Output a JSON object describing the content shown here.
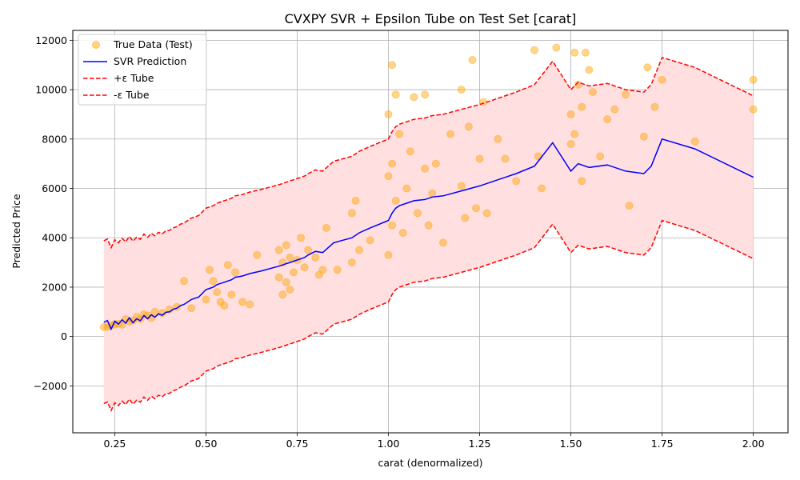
{
  "chart_data": {
    "type": "scatter",
    "title": "CVXPY SVR + Epsilon Tube on Test Set [carat]",
    "xlabel": "carat (denormalized)",
    "ylabel": "Predicted Price",
    "xlim": [
      0.135,
      2.095
    ],
    "ylim": [
      -3900,
      12400
    ],
    "xticks": [
      0.25,
      0.5,
      0.75,
      1.0,
      1.25,
      1.5,
      1.75,
      2.0
    ],
    "xtick_labels": [
      "0.25",
      "0.50",
      "0.75",
      "1.00",
      "1.25",
      "1.50",
      "1.75",
      "2.00"
    ],
    "yticks": [
      -2000,
      0,
      2000,
      4000,
      6000,
      8000,
      10000,
      12000
    ],
    "ytick_labels": [
      "−2000",
      "0",
      "2000",
      "4000",
      "6000",
      "8000",
      "10000",
      "12000"
    ],
    "grid": true,
    "legend_position": "top-left",
    "epsilon": 3300,
    "colors": {
      "scatter": "#ffa500",
      "prediction": "#0000ff",
      "tube": "#ff0000",
      "fill": "#ffdfe0"
    },
    "legend": [
      {
        "label": "True Data (Test)",
        "kind": "marker"
      },
      {
        "label": "SVR Prediction",
        "kind": "solid"
      },
      {
        "label": "+ε Tube",
        "kind": "dashed"
      },
      {
        "label": "-ε Tube",
        "kind": "dashed"
      }
    ],
    "series": [
      {
        "name": "SVR Prediction",
        "x": [
          0.22,
          0.23,
          0.24,
          0.25,
          0.26,
          0.27,
          0.28,
          0.29,
          0.3,
          0.31,
          0.32,
          0.33,
          0.34,
          0.35,
          0.36,
          0.37,
          0.38,
          0.39,
          0.4,
          0.41,
          0.42,
          0.43,
          0.44,
          0.45,
          0.46,
          0.47,
          0.48,
          0.5,
          0.51,
          0.52,
          0.53,
          0.54,
          0.55,
          0.56,
          0.57,
          0.58,
          0.6,
          0.62,
          0.65,
          0.7,
          0.71,
          0.72,
          0.73,
          0.74,
          0.75,
          0.76,
          0.77,
          0.78,
          0.8,
          0.82,
          0.85,
          0.9,
          0.92,
          0.95,
          1.0,
          1.01,
          1.02,
          1.03,
          1.05,
          1.07,
          1.1,
          1.12,
          1.15,
          1.2,
          1.25,
          1.3,
          1.35,
          1.4,
          1.45,
          1.5,
          1.52,
          1.55,
          1.6,
          1.65,
          1.7,
          1.72,
          1.75,
          1.84,
          2.0
        ],
        "y": [
          580,
          650,
          300,
          620,
          500,
          680,
          540,
          760,
          560,
          720,
          640,
          850,
          720,
          880,
          780,
          920,
          860,
          980,
          1000,
          1100,
          1150,
          1250,
          1300,
          1400,
          1500,
          1550,
          1600,
          1900,
          1950,
          2000,
          2100,
          2150,
          2200,
          2250,
          2300,
          2400,
          2450,
          2550,
          2650,
          2850,
          2900,
          2950,
          3000,
          3050,
          3100,
          3150,
          3200,
          3300,
          3450,
          3400,
          3800,
          4000,
          4200,
          4400,
          4700,
          5000,
          5200,
          5300,
          5400,
          5500,
          5550,
          5650,
          5700,
          5900,
          6100,
          6350,
          6600,
          6900,
          7850,
          6700,
          7000,
          6850,
          6950,
          6700,
          6600,
          6900,
          8000,
          7600,
          6450
        ]
      },
      {
        "name": "True Data (Test)",
        "x": [
          0.22,
          0.23,
          0.24,
          0.25,
          0.26,
          0.27,
          0.28,
          0.29,
          0.3,
          0.31,
          0.32,
          0.33,
          0.34,
          0.35,
          0.36,
          0.38,
          0.4,
          0.42,
          0.44,
          0.46,
          0.5,
          0.51,
          0.52,
          0.53,
          0.54,
          0.55,
          0.56,
          0.57,
          0.58,
          0.6,
          0.62,
          0.64,
          0.7,
          0.7,
          0.71,
          0.71,
          0.72,
          0.72,
          0.73,
          0.73,
          0.74,
          0.75,
          0.76,
          0.77,
          0.78,
          0.8,
          0.81,
          0.82,
          0.83,
          0.86,
          0.9,
          0.9,
          0.91,
          0.92,
          0.95,
          1.0,
          1.0,
          1.0,
          1.01,
          1.01,
          1.01,
          1.02,
          1.02,
          1.03,
          1.04,
          1.05,
          1.06,
          1.07,
          1.08,
          1.1,
          1.1,
          1.11,
          1.12,
          1.13,
          1.15,
          1.17,
          1.2,
          1.2,
          1.21,
          1.22,
          1.23,
          1.24,
          1.25,
          1.26,
          1.27,
          1.3,
          1.32,
          1.35,
          1.4,
          1.41,
          1.42,
          1.46,
          1.5,
          1.5,
          1.51,
          1.51,
          1.52,
          1.53,
          1.53,
          1.54,
          1.55,
          1.56,
          1.58,
          1.6,
          1.62,
          1.65,
          1.66,
          1.7,
          1.71,
          1.73,
          1.75,
          1.84,
          2.0,
          2.0
        ],
        "y": [
          380,
          400,
          450,
          500,
          520,
          480,
          700,
          600,
          650,
          800,
          700,
          900,
          850,
          750,
          1000,
          950,
          1100,
          1200,
          2250,
          1150,
          1500,
          2700,
          2250,
          1800,
          1400,
          1250,
          2900,
          1700,
          2600,
          1400,
          1300,
          3300,
          2400,
          3500,
          1700,
          3000,
          2200,
          3700,
          1900,
          3200,
          2600,
          3100,
          4000,
          2800,
          3500,
          3200,
          2500,
          2700,
          4400,
          2700,
          3000,
          5000,
          5500,
          3500,
          3900,
          3300,
          6500,
          9000,
          4500,
          7000,
          11000,
          5500,
          9800,
          8200,
          4200,
          6000,
          7500,
          9700,
          5000,
          6800,
          9800,
          4500,
          5800,
          7000,
          3800,
          8200,
          6100,
          10000,
          4800,
          8500,
          11200,
          5200,
          7200,
          9500,
          5000,
          8000,
          7200,
          6300,
          11600,
          7300,
          6000,
          11700,
          9000,
          7800,
          11500,
          8200,
          10200,
          6300,
          9300,
          11500,
          10800,
          9900,
          7300,
          8800,
          9200,
          9800,
          5300,
          8100,
          10900,
          9300,
          10400,
          7900,
          10400,
          9200
        ]
      }
    ]
  }
}
